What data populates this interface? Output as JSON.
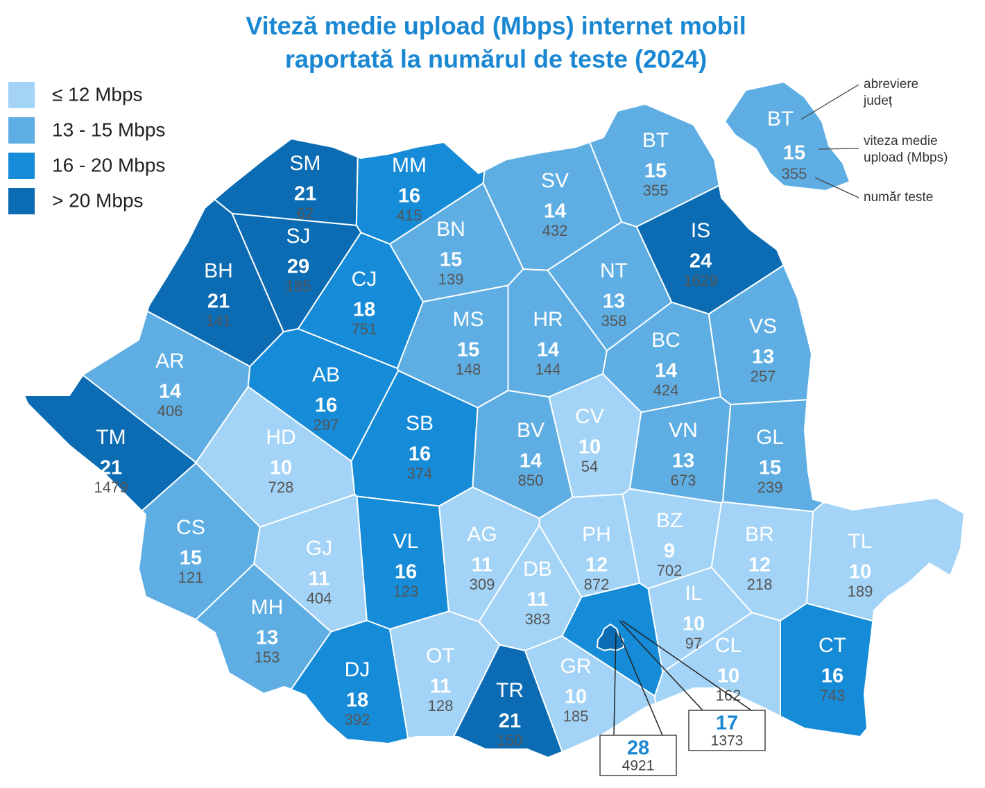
{
  "title": [
    "Viteză medie upload (Mbps) internet mobil",
    "raportată la numărul de teste (2024)"
  ],
  "title_color": "#1a87d2",
  "legend": [
    {
      "label": "≤ 12 Mbps",
      "color": "#a3d3f6"
    },
    {
      "label": "13 - 15 Mbps",
      "color": "#5eaee4"
    },
    {
      "label": "16 - 20 Mbps",
      "color": "#168bd7"
    },
    {
      "label": "> 20 Mbps",
      "color": "#0b6cb4"
    }
  ],
  "counties": [
    {
      "abbr": "SM",
      "speed": 21,
      "tests": 62,
      "color": "#0b6cb4"
    },
    {
      "abbr": "MM",
      "speed": 16,
      "tests": 415,
      "color": "#168bd7"
    },
    {
      "abbr": "BT",
      "speed": 15,
      "tests": 355,
      "color": "#5eaee4"
    },
    {
      "abbr": "SV",
      "speed": 14,
      "tests": 432,
      "color": "#5eaee4"
    },
    {
      "abbr": "BH",
      "speed": 21,
      "tests": 141,
      "color": "#0b6cb4"
    },
    {
      "abbr": "SJ",
      "speed": 29,
      "tests": 185,
      "color": "#0b6cb4"
    },
    {
      "abbr": "CJ",
      "speed": 18,
      "tests": 751,
      "color": "#168bd7"
    },
    {
      "abbr": "BN",
      "speed": 15,
      "tests": 139,
      "color": "#5eaee4"
    },
    {
      "abbr": "IS",
      "speed": 24,
      "tests": 1629,
      "color": "#0b6cb4"
    },
    {
      "abbr": "NT",
      "speed": 13,
      "tests": 358,
      "color": "#5eaee4"
    },
    {
      "abbr": "MS",
      "speed": 15,
      "tests": 148,
      "color": "#5eaee4"
    },
    {
      "abbr": "HR",
      "speed": 14,
      "tests": 144,
      "color": "#5eaee4"
    },
    {
      "abbr": "BC",
      "speed": 14,
      "tests": 424,
      "color": "#5eaee4"
    },
    {
      "abbr": "VS",
      "speed": 13,
      "tests": 257,
      "color": "#5eaee4"
    },
    {
      "abbr": "AR",
      "speed": 14,
      "tests": 406,
      "color": "#5eaee4"
    },
    {
      "abbr": "AB",
      "speed": 16,
      "tests": 297,
      "color": "#168bd7"
    },
    {
      "abbr": "TM",
      "speed": 21,
      "tests": 1479,
      "color": "#0b6cb4"
    },
    {
      "abbr": "HD",
      "speed": 10,
      "tests": 728,
      "color": "#a3d3f6"
    },
    {
      "abbr": "SB",
      "speed": 16,
      "tests": 374,
      "color": "#168bd7"
    },
    {
      "abbr": "BV",
      "speed": 14,
      "tests": 850,
      "color": "#5eaee4"
    },
    {
      "abbr": "CV",
      "speed": 10,
      "tests": 54,
      "color": "#a3d3f6"
    },
    {
      "abbr": "VN",
      "speed": 13,
      "tests": 673,
      "color": "#5eaee4"
    },
    {
      "abbr": "GL",
      "speed": 15,
      "tests": 239,
      "color": "#5eaee4"
    },
    {
      "abbr": "CS",
      "speed": 15,
      "tests": 121,
      "color": "#5eaee4"
    },
    {
      "abbr": "GJ",
      "speed": 11,
      "tests": 404,
      "color": "#a3d3f6"
    },
    {
      "abbr": "VL",
      "speed": 16,
      "tests": 123,
      "color": "#168bd7"
    },
    {
      "abbr": "AG",
      "speed": 11,
      "tests": 309,
      "color": "#a3d3f6"
    },
    {
      "abbr": "DB",
      "speed": 11,
      "tests": 383,
      "color": "#a3d3f6"
    },
    {
      "abbr": "PH",
      "speed": 12,
      "tests": 872,
      "color": "#a3d3f6"
    },
    {
      "abbr": "BZ",
      "speed": 9,
      "tests": 702,
      "color": "#a3d3f6"
    },
    {
      "abbr": "BR",
      "speed": 12,
      "tests": 218,
      "color": "#a3d3f6"
    },
    {
      "abbr": "TL",
      "speed": 10,
      "tests": 189,
      "color": "#a3d3f6"
    },
    {
      "abbr": "MH",
      "speed": 13,
      "tests": 153,
      "color": "#5eaee4"
    },
    {
      "abbr": "DJ",
      "speed": 18,
      "tests": 392,
      "color": "#168bd7"
    },
    {
      "abbr": "OT",
      "speed": 11,
      "tests": 128,
      "color": "#a3d3f6"
    },
    {
      "abbr": "TR",
      "speed": 21,
      "tests": 150,
      "color": "#0b6cb4"
    },
    {
      "abbr": "GR",
      "speed": 10,
      "tests": 185,
      "color": "#a3d3f6"
    },
    {
      "abbr": "IL",
      "speed": 10,
      "tests": 97,
      "color": "#a3d3f6"
    },
    {
      "abbr": "CL",
      "speed": 10,
      "tests": 162,
      "color": "#a3d3f6"
    },
    {
      "abbr": "CT",
      "speed": 16,
      "tests": 743,
      "color": "#168bd7"
    },
    {
      "speed": 28,
      "tests": 4921,
      "color": "#0b6cb4"
    },
    {
      "speed": 17,
      "tests": 1373,
      "color": "#168bd7"
    }
  ],
  "key": {
    "abbr": "BT",
    "speed": 15,
    "tests": 355,
    "color": "#5eaee4",
    "notes": [
      [
        "abreviere",
        "județ"
      ],
      [
        "viteza medie",
        "upload (Mbps)"
      ],
      [
        "număr teste"
      ]
    ]
  }
}
